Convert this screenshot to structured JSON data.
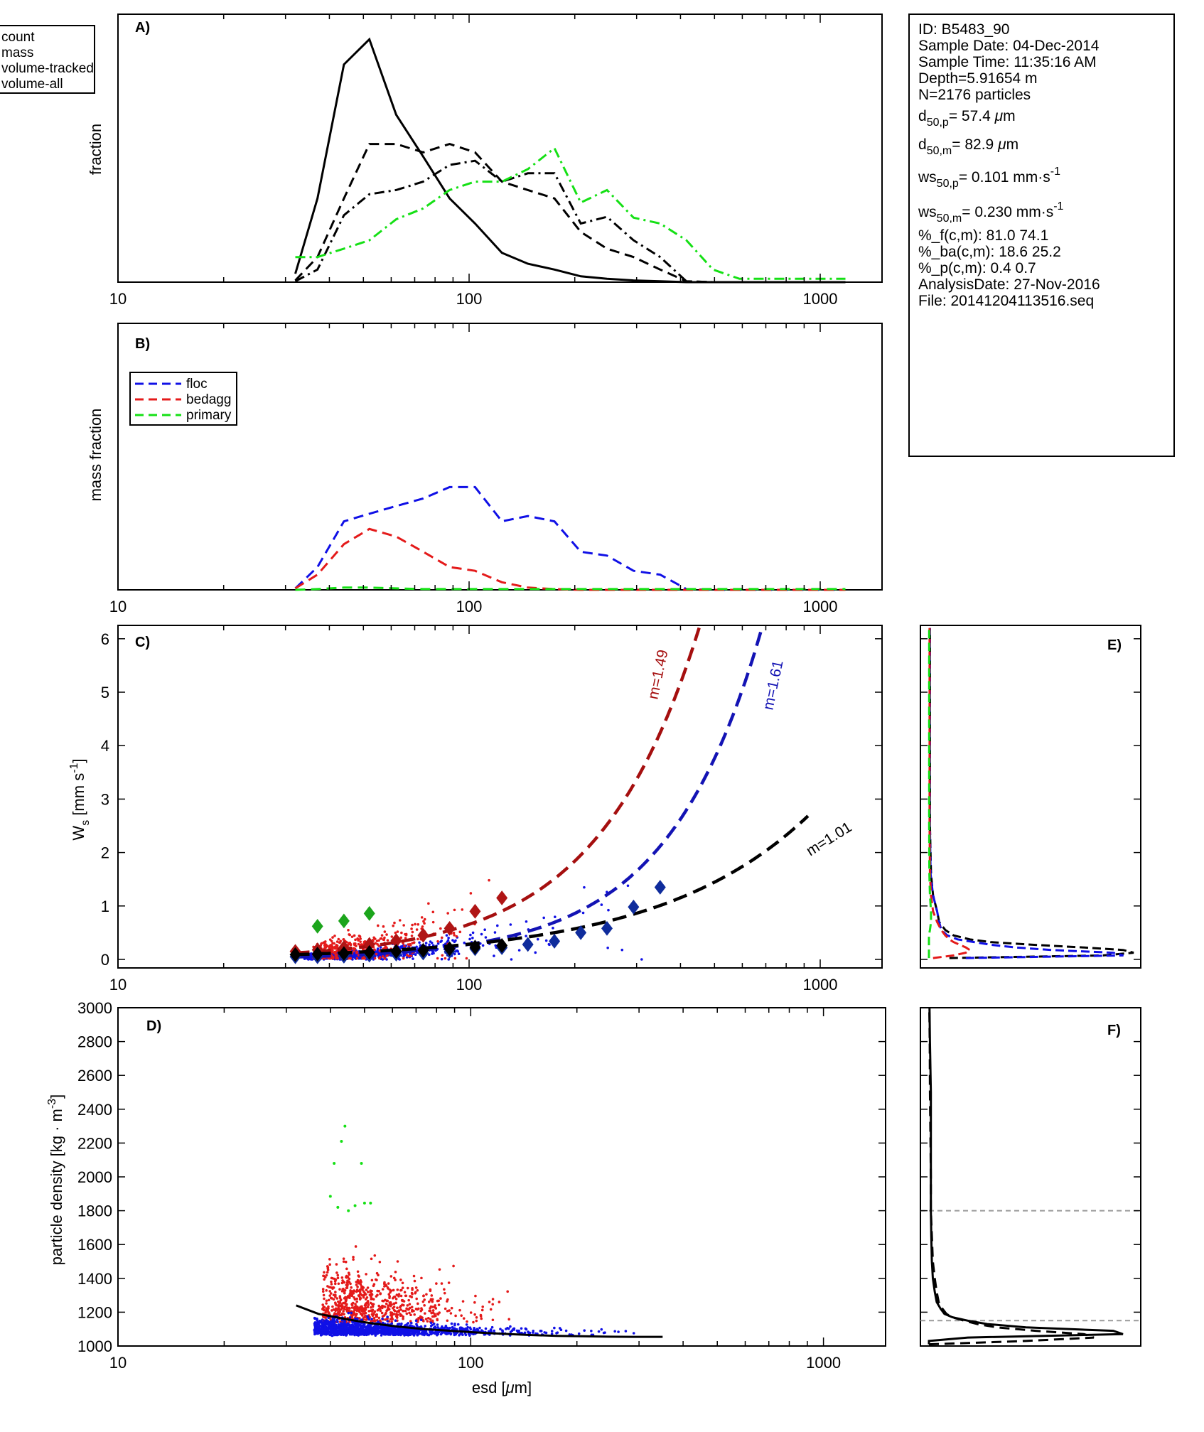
{
  "colors": {
    "floc": "#1010e6",
    "bedagg": "#e41a1a",
    "primary": "#15e015",
    "bedagg_fit": "#a50f0f",
    "floc_fit": "#1313b4",
    "all": "#000000",
    "mean_floc": "#0f2c9c",
    "mean_bedagg": "#b01515",
    "mean_primary": "#1ca51c",
    "guide": "#9a9a9a"
  },
  "x_axis": {
    "scale": "log",
    "xlim": [
      10,
      1500
    ],
    "tick_labels": [
      "10",
      "100",
      "1000"
    ],
    "xlabel_prefix": "esd [",
    "xlabel_unit": "μ",
    "xlabel_suffix": "m]"
  },
  "info_box": {
    "id": "ID: B5483_90",
    "sample_date": "Sample Date: 04-Dec-2014",
    "sample_time": "Sample Time: 11:35:16 AM",
    "depth": "Depth=5.91654 m",
    "n": "N=2176 particles",
    "d50p_prefix": "d",
    "d50p_sub": "50,p",
    "d50p_value": "= 57.4 ",
    "d50p_unit_mu": "μ",
    "d50p_unit": "m",
    "d50m_prefix": "d",
    "d50m_sub": "50,m",
    "d50m_value": "= 82.9 ",
    "d50m_unit_mu": "μ",
    "d50m_unit": "m",
    "ws50p_prefix": "ws",
    "ws50p_sub": "50,p",
    "ws50p_value": "= 0.101 mm·s",
    "ws50p_sup": "-1",
    "ws50m_prefix": "ws",
    "ws50m_sub": "50,m",
    "ws50m_value": "= 0.230 mm·s",
    "ws50m_sup": "-1",
    "pct_f": "%_f(c,m): 81.0 74.1",
    "pct_ba": "%_ba(c,m): 18.6 25.2",
    "pct_p": "%_p(c,m): 0.4 0.7",
    "analysis_date": "AnalysisDate: 27-Nov-2016",
    "file": "File: 20141204113516.seq"
  },
  "chart_data": [
    {
      "panel": "A)",
      "type": "line",
      "ylabel": "fraction",
      "legend": {
        "placement": "outside-left",
        "entries": [
          "count",
          "mass",
          "volume-tracked",
          "volume-all"
        ]
      },
      "x": [
        32,
        37,
        44,
        52,
        62,
        74,
        88,
        104,
        124,
        147,
        175,
        208,
        247,
        294,
        350,
        416,
        495,
        589,
        700,
        832,
        990,
        1180
      ],
      "ylim": [
        0,
        0.32
      ],
      "series": [
        {
          "name": "count",
          "style": "solid",
          "values": [
            0.01,
            0.1,
            0.26,
            0.29,
            0.2,
            0.15,
            0.1,
            0.07,
            0.035,
            0.022,
            0.015,
            0.007,
            0.004,
            0.002,
            0.001,
            0,
            0,
            0,
            0,
            0,
            0,
            0
          ]
        },
        {
          "name": "mass",
          "style": "dashed",
          "values": [
            0.002,
            0.03,
            0.1,
            0.165,
            0.165,
            0.155,
            0.165,
            0.155,
            0.12,
            0.11,
            0.1,
            0.06,
            0.04,
            0.03,
            0.015,
            0.001,
            0,
            0,
            0,
            0,
            0,
            0
          ]
        },
        {
          "name": "volume-tracked",
          "style": "dashdot",
          "values": [
            0.001,
            0.015,
            0.08,
            0.105,
            0.11,
            0.12,
            0.14,
            0.145,
            0.12,
            0.13,
            0.13,
            0.07,
            0.078,
            0.05,
            0.03,
            0.001,
            0,
            0,
            0,
            0,
            0,
            0
          ]
        },
        {
          "name": "volume-all",
          "style": "dashdot",
          "values": [
            0.03,
            0.03,
            0.04,
            0.05,
            0.075,
            0.088,
            0.11,
            0.12,
            0.12,
            0.135,
            0.16,
            0.095,
            0.11,
            0.077,
            0.07,
            0.05,
            0.015,
            0.004,
            0.004,
            0.004,
            0.004,
            0.004
          ]
        }
      ]
    },
    {
      "panel": "B)",
      "type": "line",
      "ylabel": "mass fraction",
      "legend": {
        "placement": "top-left",
        "entries": [
          "floc",
          "bedagg",
          "primary"
        ]
      },
      "x": [
        32,
        37,
        44,
        52,
        62,
        74,
        88,
        104,
        124,
        147,
        175,
        208,
        247,
        294,
        350,
        416,
        495,
        589,
        700,
        832,
        990,
        1180
      ],
      "ylim": [
        0,
        0.35
      ],
      "series": [
        {
          "name": "floc",
          "style": "dashed",
          "values": [
            0.002,
            0.03,
            0.09,
            0.1,
            0.11,
            0.12,
            0.135,
            0.135,
            0.09,
            0.097,
            0.09,
            0.05,
            0.045,
            0.025,
            0.02,
            0.001,
            0,
            0,
            0,
            0,
            0,
            0
          ]
        },
        {
          "name": "bedagg",
          "style": "dashed",
          "values": [
            0.002,
            0.02,
            0.06,
            0.08,
            0.07,
            0.05,
            0.03,
            0.025,
            0.01,
            0.003,
            0.001,
            0,
            0,
            0,
            0,
            0,
            0,
            0,
            0,
            0,
            0,
            0
          ]
        },
        {
          "name": "primary",
          "style": "dashed",
          "values": [
            0,
            0.001,
            0.003,
            0.003,
            0.002,
            0.001,
            0.001,
            0.001,
            0.001,
            0.001,
            0.001,
            0.001,
            0.001,
            0.001,
            0.001,
            0.001,
            0.001,
            0.001,
            0.001,
            0.001,
            0.001,
            0.001
          ]
        }
      ]
    },
    {
      "panel": "C)",
      "type": "scatter",
      "ylabel_prefix": "W",
      "ylabel_sub": "s",
      "ylabel_unit": " [mm s",
      "ylabel_sup": "-1",
      "ylabel_suffix": "]",
      "ylim": [
        0,
        6.25
      ],
      "y_ticks": [
        0,
        1,
        2,
        3,
        4,
        5,
        6
      ],
      "y_tick_labels": [
        "0",
        "1",
        "2",
        "3",
        "4",
        "5",
        "6"
      ],
      "fits": [
        {
          "label": "m=1.49",
          "group": "bedagg",
          "x0": 32,
          "y0": 0.12,
          "exponent": 1.49
        },
        {
          "label": "m=1.61",
          "group": "floc",
          "x0": 32,
          "y0": 0.045,
          "exponent": 1.61
        },
        {
          "label": "m=1.01",
          "group": "all",
          "x0": 32,
          "y0": 0.09,
          "exponent": 1.01
        }
      ],
      "bin_means": [
        {
          "group": "floc",
          "x": [
            32,
            37,
            44,
            52,
            62,
            74,
            88,
            104,
            124,
            147,
            175,
            208,
            247,
            294,
            350
          ],
          "y": [
            0.05,
            0.05,
            0.06,
            0.08,
            0.1,
            0.12,
            0.15,
            0.2,
            0.22,
            0.28,
            0.34,
            0.5,
            0.58,
            0.98,
            1.35
          ]
        },
        {
          "group": "bedagg",
          "x": [
            32,
            37,
            44,
            52,
            62,
            74,
            88,
            104,
            124
          ],
          "y": [
            0.15,
            0.18,
            0.22,
            0.28,
            0.35,
            0.45,
            0.58,
            0.9,
            1.15
          ]
        },
        {
          "group": "all",
          "x": [
            32,
            37,
            44,
            52,
            62,
            74,
            88,
            104,
            124
          ],
          "y": [
            0.09,
            0.1,
            0.11,
            0.13,
            0.15,
            0.17,
            0.2,
            0.23,
            0.26
          ]
        },
        {
          "group": "primary",
          "x": [
            37,
            44,
            52
          ],
          "y": [
            0.62,
            0.72,
            0.86
          ]
        }
      ]
    },
    {
      "panel": "D)",
      "type": "scatter",
      "ylabel_prefix": "particle density [kg · m",
      "ylabel_sup": "-3",
      "ylabel_suffix": "]",
      "ylim": [
        1000,
        3000
      ],
      "y_ticks": [
        1000,
        1200,
        1400,
        1600,
        1800,
        2000,
        2200,
        2400,
        2600,
        2800,
        3000
      ],
      "y_tick_labels": [
        "1000",
        "1200",
        "1400",
        "1600",
        "1800",
        "2000",
        "2200",
        "2400",
        "2600",
        "2800",
        "3000"
      ],
      "mean_curve": {
        "x": [
          32,
          37,
          44,
          52,
          62,
          74,
          88,
          104,
          124,
          147,
          175,
          208,
          247,
          294,
          350
        ],
        "y": [
          1240,
          1190,
          1160,
          1135,
          1115,
          1100,
          1090,
          1080,
          1072,
          1065,
          1060,
          1058,
          1055,
          1054,
          1054
        ]
      },
      "primary_points": {
        "x": [
          44,
          43,
          49,
          41,
          52,
          40,
          47,
          50,
          42,
          45
        ],
        "y": [
          2300,
          2210,
          2080,
          2080,
          1845,
          1885,
          1830,
          1845,
          1820,
          1800
        ]
      }
    },
    {
      "panel": "E)",
      "type": "line",
      "orientation": "horizontal-histogram",
      "ylim": [
        0,
        6.25
      ],
      "y_bins": [
        0.025,
        0.075,
        0.125,
        0.175,
        0.225,
        0.275,
        0.325,
        0.375,
        0.45,
        0.55,
        0.7,
        0.9,
        1.2,
        1.6,
        2.5,
        4.0,
        6.2
      ],
      "series": [
        {
          "name": "all",
          "style": "dashed",
          "values": [
            0.1,
            0.85,
            1.0,
            0.95,
            0.75,
            0.5,
            0.3,
            0.2,
            0.12,
            0.08,
            0.05,
            0.04,
            0.02,
            0.01,
            0.005,
            0.005,
            0.005
          ]
        },
        {
          "name": "floc",
          "style": "dashed",
          "values": [
            0.18,
            0.95,
            0.9,
            0.6,
            0.42,
            0.3,
            0.22,
            0.14,
            0.09,
            0.06,
            0.05,
            0.04,
            0.02,
            0.008,
            0.005,
            0.005,
            0.005
          ]
        },
        {
          "name": "bedagg",
          "style": "dashed",
          "values": [
            0.02,
            0.12,
            0.18,
            0.2,
            0.18,
            0.15,
            0.12,
            0.1,
            0.08,
            0.06,
            0.04,
            0.02,
            0.01,
            0.005,
            0.003,
            0.003,
            0.003
          ]
        },
        {
          "name": "primary",
          "style": "dashed",
          "values": [
            0,
            0,
            0,
            0,
            0,
            0,
            0,
            0,
            0,
            0.005,
            0.01,
            0.01,
            0.005,
            0.002,
            0.001,
            0.001,
            0.001
          ]
        }
      ]
    },
    {
      "panel": "F)",
      "type": "line",
      "orientation": "horizontal-histogram",
      "ylim": [
        1000,
        3000
      ],
      "reference_lines": [
        1150,
        1800
      ],
      "y_bins": [
        1010,
        1030,
        1050,
        1070,
        1090,
        1110,
        1130,
        1150,
        1170,
        1190,
        1220,
        1260,
        1320,
        1400,
        1500,
        1650,
        1800,
        2000,
        2200,
        2500,
        2800,
        3000
      ],
      "series": [
        {
          "name": "solid",
          "style": "solid",
          "values": [
            0,
            0.0,
            0.2,
            1.0,
            0.95,
            0.5,
            0.3,
            0.2,
            0.12,
            0.08,
            0.06,
            0.04,
            0.03,
            0.02,
            0.015,
            0.012,
            0.01,
            0.01,
            0.01,
            0.01,
            0.005,
            0.003
          ]
        },
        {
          "name": "dashed",
          "style": "dashed",
          "values": [
            0,
            0.5,
            0.85,
            0.8,
            0.55,
            0.35,
            0.25,
            0.18,
            0.12,
            0.09,
            0.07,
            0.05,
            0.04,
            0.03,
            0.02,
            0.015,
            0.01,
            0.01,
            0.008,
            0.005,
            0.004,
            0.002
          ]
        }
      ]
    }
  ]
}
